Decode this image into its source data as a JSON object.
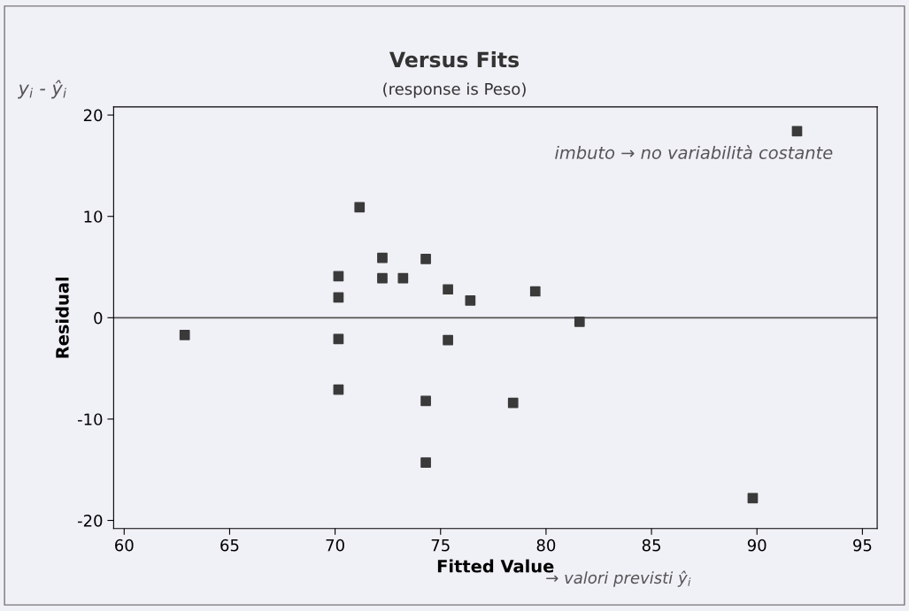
{
  "chart_data": {
    "type": "scatter",
    "title": "Versus Fits",
    "subtitle": "(response is Peso)",
    "xlabel": "Fitted Value",
    "ylabel": "Residual",
    "x": [
      62.87,
      71.16,
      72.24,
      74.3,
      70.16,
      72.24,
      73.22,
      75.35,
      76.41,
      70.16,
      70.16,
      75.35,
      70.16,
      74.3,
      74.3,
      79.49,
      81.59,
      78.44,
      91.9,
      89.8
    ],
    "series": [
      {
        "color": "#3a3a3a",
        "values": [
          -1.7,
          10.9,
          5.9,
          5.8,
          4.1,
          3.9,
          3.9,
          2.8,
          1.7,
          2.0,
          -2.1,
          -2.2,
          -7.1,
          -8.2,
          -14.3,
          2.6,
          -0.4,
          -8.4,
          18.4,
          -17.8
        ]
      }
    ],
    "marker": "square",
    "xlim": [
      59.5,
      95.7
    ],
    "ylim": [
      -20.8,
      20.8
    ],
    "xticks": [
      60,
      65,
      70,
      75,
      80,
      85,
      90,
      95
    ],
    "yticks": [
      -20,
      -10,
      0,
      10,
      20
    ],
    "ref_lines": [
      {
        "axis": "y",
        "value": 0,
        "color": "#555555"
      }
    ],
    "grid": false,
    "legend": false,
    "annotations": [
      "y$_{i}$ - ŷ$_{i}$",
      "imbuto → no variabilità costante",
      "→ valori previsti ŷ$_{i}$"
    ]
  }
}
